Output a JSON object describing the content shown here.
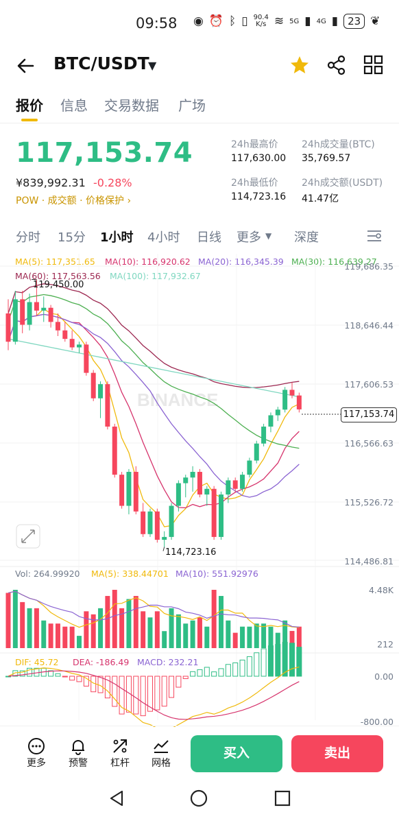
{
  "status_bar": {
    "time": "09:58",
    "speed": "90.4\nK/s",
    "network": "5G",
    "network2": "4G",
    "battery": "23"
  },
  "header": {
    "pair": "BTC/USDT"
  },
  "tabs": [
    {
      "label": "报价",
      "active": true
    },
    {
      "label": "信息"
    },
    {
      "label": "交易数据"
    },
    {
      "label": "广场"
    }
  ],
  "ticker": {
    "price": "117,153.74",
    "cny": "¥839,992.31",
    "change": "-0.28%",
    "tag1": "POW",
    "tag2": "成交额",
    "tag3": "价格保护",
    "high_label": "24h最高价",
    "high": "117,630.00",
    "vol_btc_label": "24h成交量(BTC)",
    "vol_btc": "35,769.57",
    "low_label": "24h最低价",
    "low": "114,723.16",
    "vol_usdt_label": "24h成交额(USDT)",
    "vol_usdt": "41.47亿"
  },
  "intervals": [
    {
      "label": "分时"
    },
    {
      "label": "15分"
    },
    {
      "label": "1小时",
      "active": true
    },
    {
      "label": "4小时"
    },
    {
      "label": "日线"
    },
    {
      "label": "更多"
    },
    {
      "label": "深度"
    }
  ],
  "ma": {
    "ma5": "MA(5): 117,351.65",
    "ma10": "MA(10): 116,920.62",
    "ma20": "MA(20): 116,345.39",
    "ma30": "MA(30): 116,639.27",
    "ma60": "MA(60): 117,563.56",
    "ma100": "MA(100): 117,932.67"
  },
  "price_axis": [
    "119,686.35",
    "118,646.44",
    "117,606.53",
    "116,566.63",
    "115,526.72",
    "114,486.81"
  ],
  "last_price_tag": "117,153.74",
  "chart_labels": {
    "high": "119,450.00",
    "low": "114,723.16",
    "watermark": "BINANCE"
  },
  "volume": {
    "vol": "Vol: 264.99920",
    "ma5": "MA(5): 338.44701",
    "ma10": "MA(10): 551.92976",
    "axis_top": "4.48K",
    "axis_bottom": "212"
  },
  "macd": {
    "dif": "DIF: 45.72",
    "dea": "DEA: -186.49",
    "macd": "MACD: 232.21",
    "axis_zero": "0.00",
    "axis_bottom": "-800.00"
  },
  "bottom_bar": {
    "more": "更多",
    "alert": "预警",
    "leverage": "杠杆",
    "grid": "网格",
    "buy": "买入",
    "sell": "卖出"
  },
  "colors": {
    "up": "#2ebd85",
    "down": "#f6465d",
    "accent": "#f0b90b"
  },
  "chart_data": {
    "type": "candlestick",
    "ohlc": [
      [
        118850,
        119100,
        118200,
        118350
      ],
      [
        118350,
        119250,
        118300,
        119100
      ],
      [
        119100,
        119250,
        118500,
        118650
      ],
      [
        118650,
        119200,
        118550,
        119050
      ],
      [
        119050,
        119450,
        118800,
        118900
      ],
      [
        118900,
        119150,
        118700,
        118950
      ],
      [
        118950,
        119000,
        118600,
        118700
      ],
      [
        118700,
        118850,
        118450,
        118550
      ],
      [
        118550,
        118700,
        118350,
        118400
      ],
      [
        118400,
        118550,
        118200,
        118250
      ],
      [
        118250,
        118350,
        118150,
        118300
      ],
      [
        118300,
        118350,
        117750,
        117800
      ],
      [
        117800,
        117850,
        117300,
        117350
      ],
      [
        117350,
        117650,
        117000,
        117600
      ],
      [
        117600,
        117650,
        116800,
        116850
      ],
      [
        116850,
        116900,
        115950,
        116000
      ],
      [
        116000,
        116050,
        115400,
        115450
      ],
      [
        115450,
        116100,
        115300,
        116050
      ],
      [
        116050,
        116150,
        115300,
        115350
      ],
      [
        115350,
        115500,
        114900,
        114950
      ],
      [
        114950,
        115400,
        114900,
        115350
      ],
      [
        115350,
        115400,
        114800,
        114850
      ],
      [
        114850,
        115000,
        114723,
        114900
      ],
      [
        114900,
        115500,
        114850,
        115450
      ],
      [
        115450,
        115900,
        115350,
        115850
      ],
      [
        115850,
        116000,
        115600,
        115950
      ],
      [
        115950,
        116150,
        115700,
        116050
      ],
      [
        116050,
        116100,
        115600,
        115650
      ],
      [
        115650,
        115800,
        115450,
        115750
      ],
      [
        115750,
        115800,
        114850,
        114900
      ],
      [
        114900,
        115700,
        114850,
        115650
      ],
      [
        115650,
        115950,
        115500,
        115900
      ],
      [
        115900,
        115950,
        115700,
        115750
      ],
      [
        115750,
        116050,
        115700,
        116000
      ],
      [
        116000,
        116300,
        115950,
        116250
      ],
      [
        116250,
        116600,
        116200,
        116550
      ],
      [
        116550,
        116900,
        116500,
        116850
      ],
      [
        116850,
        117100,
        116750,
        117050
      ],
      [
        117050,
        117200,
        116950,
        117150
      ],
      [
        117150,
        117550,
        117100,
        117500
      ],
      [
        117500,
        117630,
        117350,
        117400
      ],
      [
        117400,
        117450,
        117100,
        117154
      ]
    ],
    "ylim": [
      114486.81,
      119686.35
    ]
  }
}
